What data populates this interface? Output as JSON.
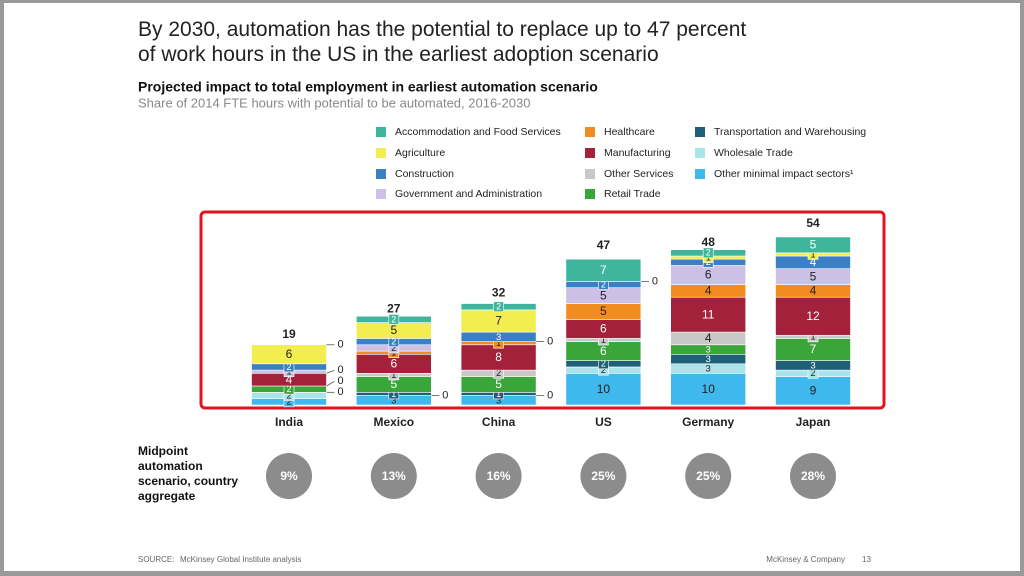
{
  "title": "By 2030, automation has the potential to replace up to 47 percent of work hours in the US in the earliest adoption scenario",
  "chart_data": {
    "type": "stacked-bar",
    "title": "Projected impact to total employment in earliest automation scenario",
    "subtitle": "Share of 2014 FTE hours with potential to be automated, 2016-2030",
    "categories": [
      "India",
      "Mexico",
      "China",
      "US",
      "Germany",
      "Japan"
    ],
    "totals": [
      19,
      27,
      32,
      47,
      48,
      54
    ],
    "series": [
      {
        "name": "Accommodation and Food Services",
        "color": "#3fb59c",
        "values": [
          0,
          2,
          2,
          7,
          2,
          5
        ]
      },
      {
        "name": "Agriculture",
        "color": "#f2ee4f",
        "values": [
          6,
          5,
          7,
          0,
          1,
          1
        ]
      },
      {
        "name": "Construction",
        "color": "#3b7fc4",
        "values": [
          2,
          2,
          3,
          2,
          2,
          4
        ]
      },
      {
        "name": "Government and Administration",
        "color": "#cdbfe6",
        "values": [
          1,
          2,
          0,
          5,
          6,
          5
        ]
      },
      {
        "name": "Healthcare",
        "color": "#f28c1e",
        "values": [
          0,
          1,
          1,
          5,
          4,
          4
        ]
      },
      {
        "name": "Manufacturing",
        "color": "#a3213a",
        "values": [
          4,
          6,
          8,
          6,
          11,
          12
        ]
      },
      {
        "name": "Other Services",
        "color": "#c8c8c8",
        "values": [
          0,
          1,
          2,
          1,
          4,
          1
        ]
      },
      {
        "name": "Retail Trade",
        "color": "#3aa63a",
        "values": [
          2,
          5,
          5,
          6,
          3,
          7
        ]
      },
      {
        "name": "Transportation and Warehousing",
        "color": "#1f5f78",
        "values": [
          0,
          1,
          1,
          2,
          3,
          3
        ]
      },
      {
        "name": "Wholesale Trade",
        "color": "#a8e4ea",
        "values": [
          2,
          0,
          0,
          2,
          3,
          2
        ]
      },
      {
        "name": "Other minimal impact sectors¹",
        "color": "#3fb8ee",
        "values": [
          2,
          3,
          3,
          10,
          10,
          9
        ]
      }
    ],
    "midpoint": {
      "label": "Midpoint automation scenario, country aggregate",
      "values": [
        9,
        13,
        16,
        25,
        25,
        28
      ],
      "value_labels": [
        "9%",
        "13%",
        "16%",
        "25%",
        "25%",
        "28%"
      ],
      "color": "#8c8c8c"
    }
  },
  "footer": {
    "source_label": "SOURCE:",
    "source": "McKinsey Global Institute analysis",
    "company": "McKinsey & Company",
    "page": "13"
  }
}
